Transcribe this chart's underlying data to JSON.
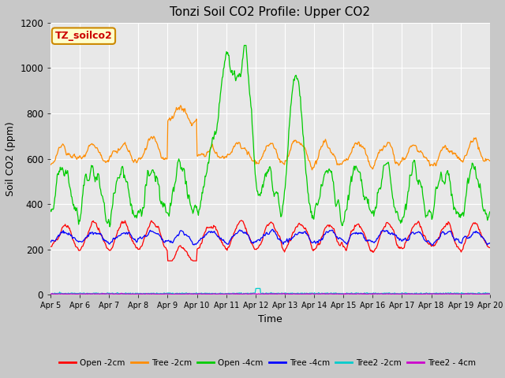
{
  "title": "Tonzi Soil CO2 Profile: Upper CO2",
  "xlabel": "Time",
  "ylabel": "Soil CO2 (ppm)",
  "ylim": [
    0,
    1200
  ],
  "yticks": [
    0,
    200,
    400,
    600,
    800,
    1000,
    1200
  ],
  "fig_bg": "#c8c8c8",
  "plot_bg": "#e8e8e8",
  "grid_color": "#ffffff",
  "series": {
    "Open -2cm": {
      "color": "#ff0000",
      "lw": 1.0
    },
    "Tree -2cm": {
      "color": "#ff8c00",
      "lw": 1.0
    },
    "Open -4cm": {
      "color": "#00cc00",
      "lw": 1.0
    },
    "Tree -4cm": {
      "color": "#0000ff",
      "lw": 1.0
    },
    "Tree2 -2cm": {
      "color": "#00cccc",
      "lw": 1.0
    },
    "Tree2 - 4cm": {
      "color": "#cc00cc",
      "lw": 1.0
    }
  },
  "watermark": "TZ_soilco2",
  "watermark_color": "#cc0000",
  "watermark_bg": "#ffffcc",
  "watermark_border": "#cc8800",
  "n_days": 15,
  "pts_per_day": 48,
  "legend_labels": [
    "Open -2cm",
    "Tree -2cm",
    "Open -4cm",
    "Tree -4cm",
    "Tree2 -2cm",
    "Tree2 - 4cm"
  ]
}
